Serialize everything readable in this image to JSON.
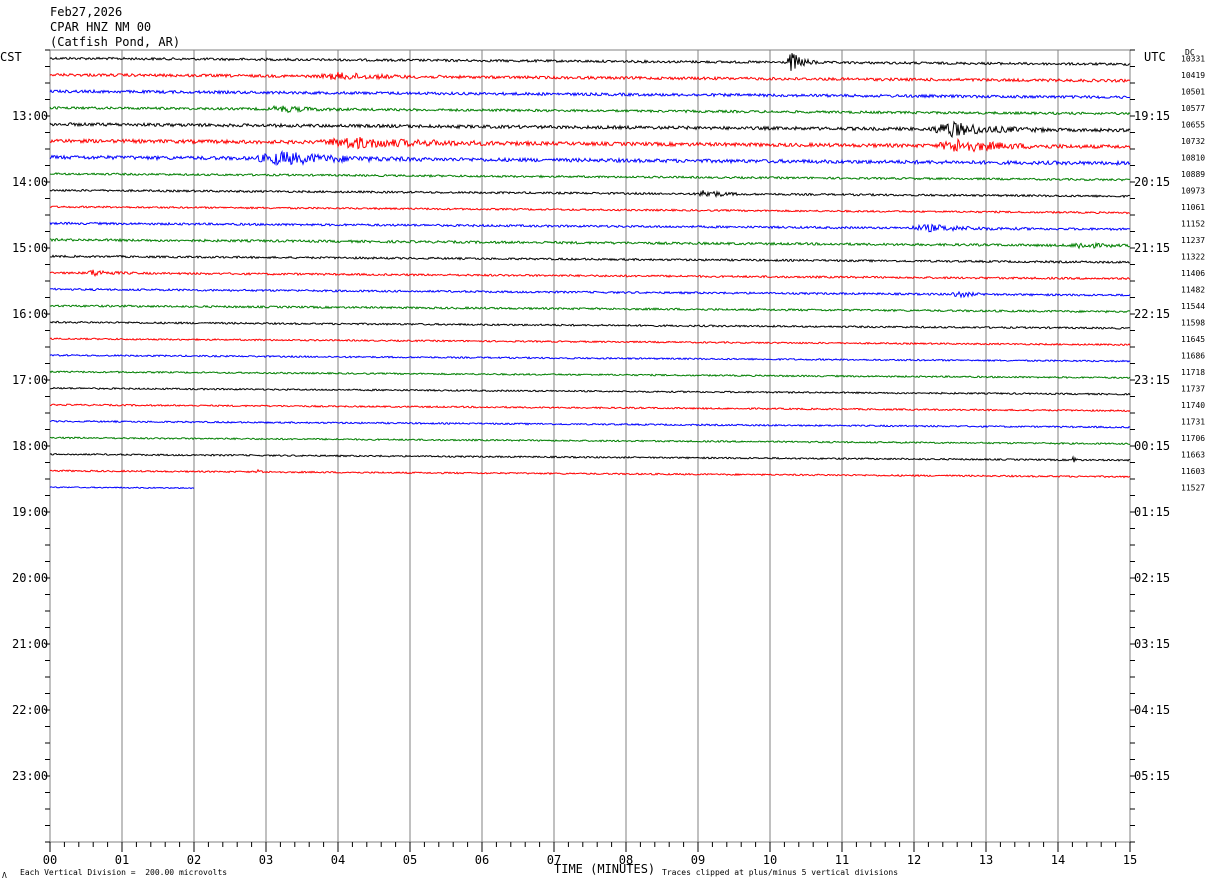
{
  "header": {
    "date": "Feb27,2026",
    "station": "CPAR HNZ NM 00",
    "location": "(Catfish Pond, AR)"
  },
  "left_timezone": "CST",
  "right_timezone": "UTC",
  "dc_label": "DC",
  "footer": {
    "scale_note": "Each Vertical Division =  200.00 microvolts",
    "clip_note": "Traces clipped at plus/minus 5 vertical divisions",
    "corner_mark": "Λ"
  },
  "colors": {
    "cycle": [
      "#000000",
      "#ff0000",
      "#0000ff",
      "#007f00"
    ],
    "grid": "#808080"
  },
  "chart_data": {
    "type": "line",
    "title": "",
    "xlabel": "TIME (MINUTES)",
    "ylabel": "",
    "xlim": [
      0,
      15
    ],
    "x_ticks": [
      "00",
      "01",
      "02",
      "03",
      "04",
      "05",
      "06",
      "07",
      "08",
      "09",
      "10",
      "11",
      "12",
      "13",
      "14",
      "15"
    ],
    "left_hour_labels": [
      "13:00",
      "14:00",
      "15:00",
      "16:00",
      "17:00",
      "18:00",
      "19:00",
      "20:00",
      "21:00",
      "22:00",
      "23:00"
    ],
    "right_hour_labels": [
      "19:15",
      "20:15",
      "21:15",
      "22:15",
      "23:15",
      "00:15",
      "01:15",
      "02:15",
      "03:15",
      "04:15",
      "05:15"
    ],
    "dc_offsets": [
      "10331",
      "10419",
      "10501",
      "10577",
      "10655",
      "10732",
      "10810",
      "10889",
      "10973",
      "11061",
      "11152",
      "11237",
      "11322",
      "11406",
      "11482",
      "11544",
      "11598",
      "11645",
      "11686",
      "11718",
      "11737",
      "11740",
      "11731",
      "11706",
      "11663",
      "11603",
      "11527"
    ],
    "trace_end_minutes": [
      15,
      15,
      15,
      15,
      15,
      15,
      15,
      15,
      15,
      15,
      15,
      15,
      15,
      15,
      15,
      15,
      15,
      15,
      15,
      15,
      15,
      15,
      15,
      15,
      15,
      15,
      2
    ],
    "trace_noise": [
      1.2,
      1.4,
      1.4,
      1.2,
      1.6,
      1.8,
      1.8,
      1.0,
      1.0,
      0.9,
      1.1,
      1.2,
      1.0,
      1.0,
      1.0,
      1.0,
      0.9,
      0.8,
      0.8,
      0.8,
      0.8,
      0.8,
      0.8,
      0.8,
      0.8,
      0.8,
      0.6
    ],
    "events": [
      {
        "trace": 0,
        "minute": 10.3,
        "amplitude": 10,
        "duration": 0.4
      },
      {
        "trace": 1,
        "minute": 4.0,
        "amplitude": 3,
        "duration": 1.5
      },
      {
        "trace": 3,
        "minute": 3.2,
        "amplitude": 3,
        "duration": 1.0
      },
      {
        "trace": 4,
        "minute": 12.5,
        "amplitude": 7,
        "duration": 1.5
      },
      {
        "trace": 5,
        "minute": 4.2,
        "amplitude": 5,
        "duration": 2.5
      },
      {
        "trace": 5,
        "minute": 12.6,
        "amplitude": 6,
        "duration": 1.5
      },
      {
        "trace": 6,
        "minute": 3.2,
        "amplitude": 6,
        "duration": 2.0
      },
      {
        "trace": 8,
        "minute": 9.1,
        "amplitude": 4,
        "duration": 0.6
      },
      {
        "trace": 10,
        "minute": 12.2,
        "amplitude": 3,
        "duration": 1.5
      },
      {
        "trace": 11,
        "minute": 14.3,
        "amplitude": 3,
        "duration": 0.7
      },
      {
        "trace": 13,
        "minute": 0.6,
        "amplitude": 3,
        "duration": 0.6
      },
      {
        "trace": 14,
        "minute": 12.6,
        "amplitude": 3,
        "duration": 0.5
      },
      {
        "trace": 24,
        "minute": 14.2,
        "amplitude": 6,
        "duration": 0.1
      },
      {
        "trace": 25,
        "minute": 2.9,
        "amplitude": 4,
        "duration": 0.1
      }
    ]
  }
}
